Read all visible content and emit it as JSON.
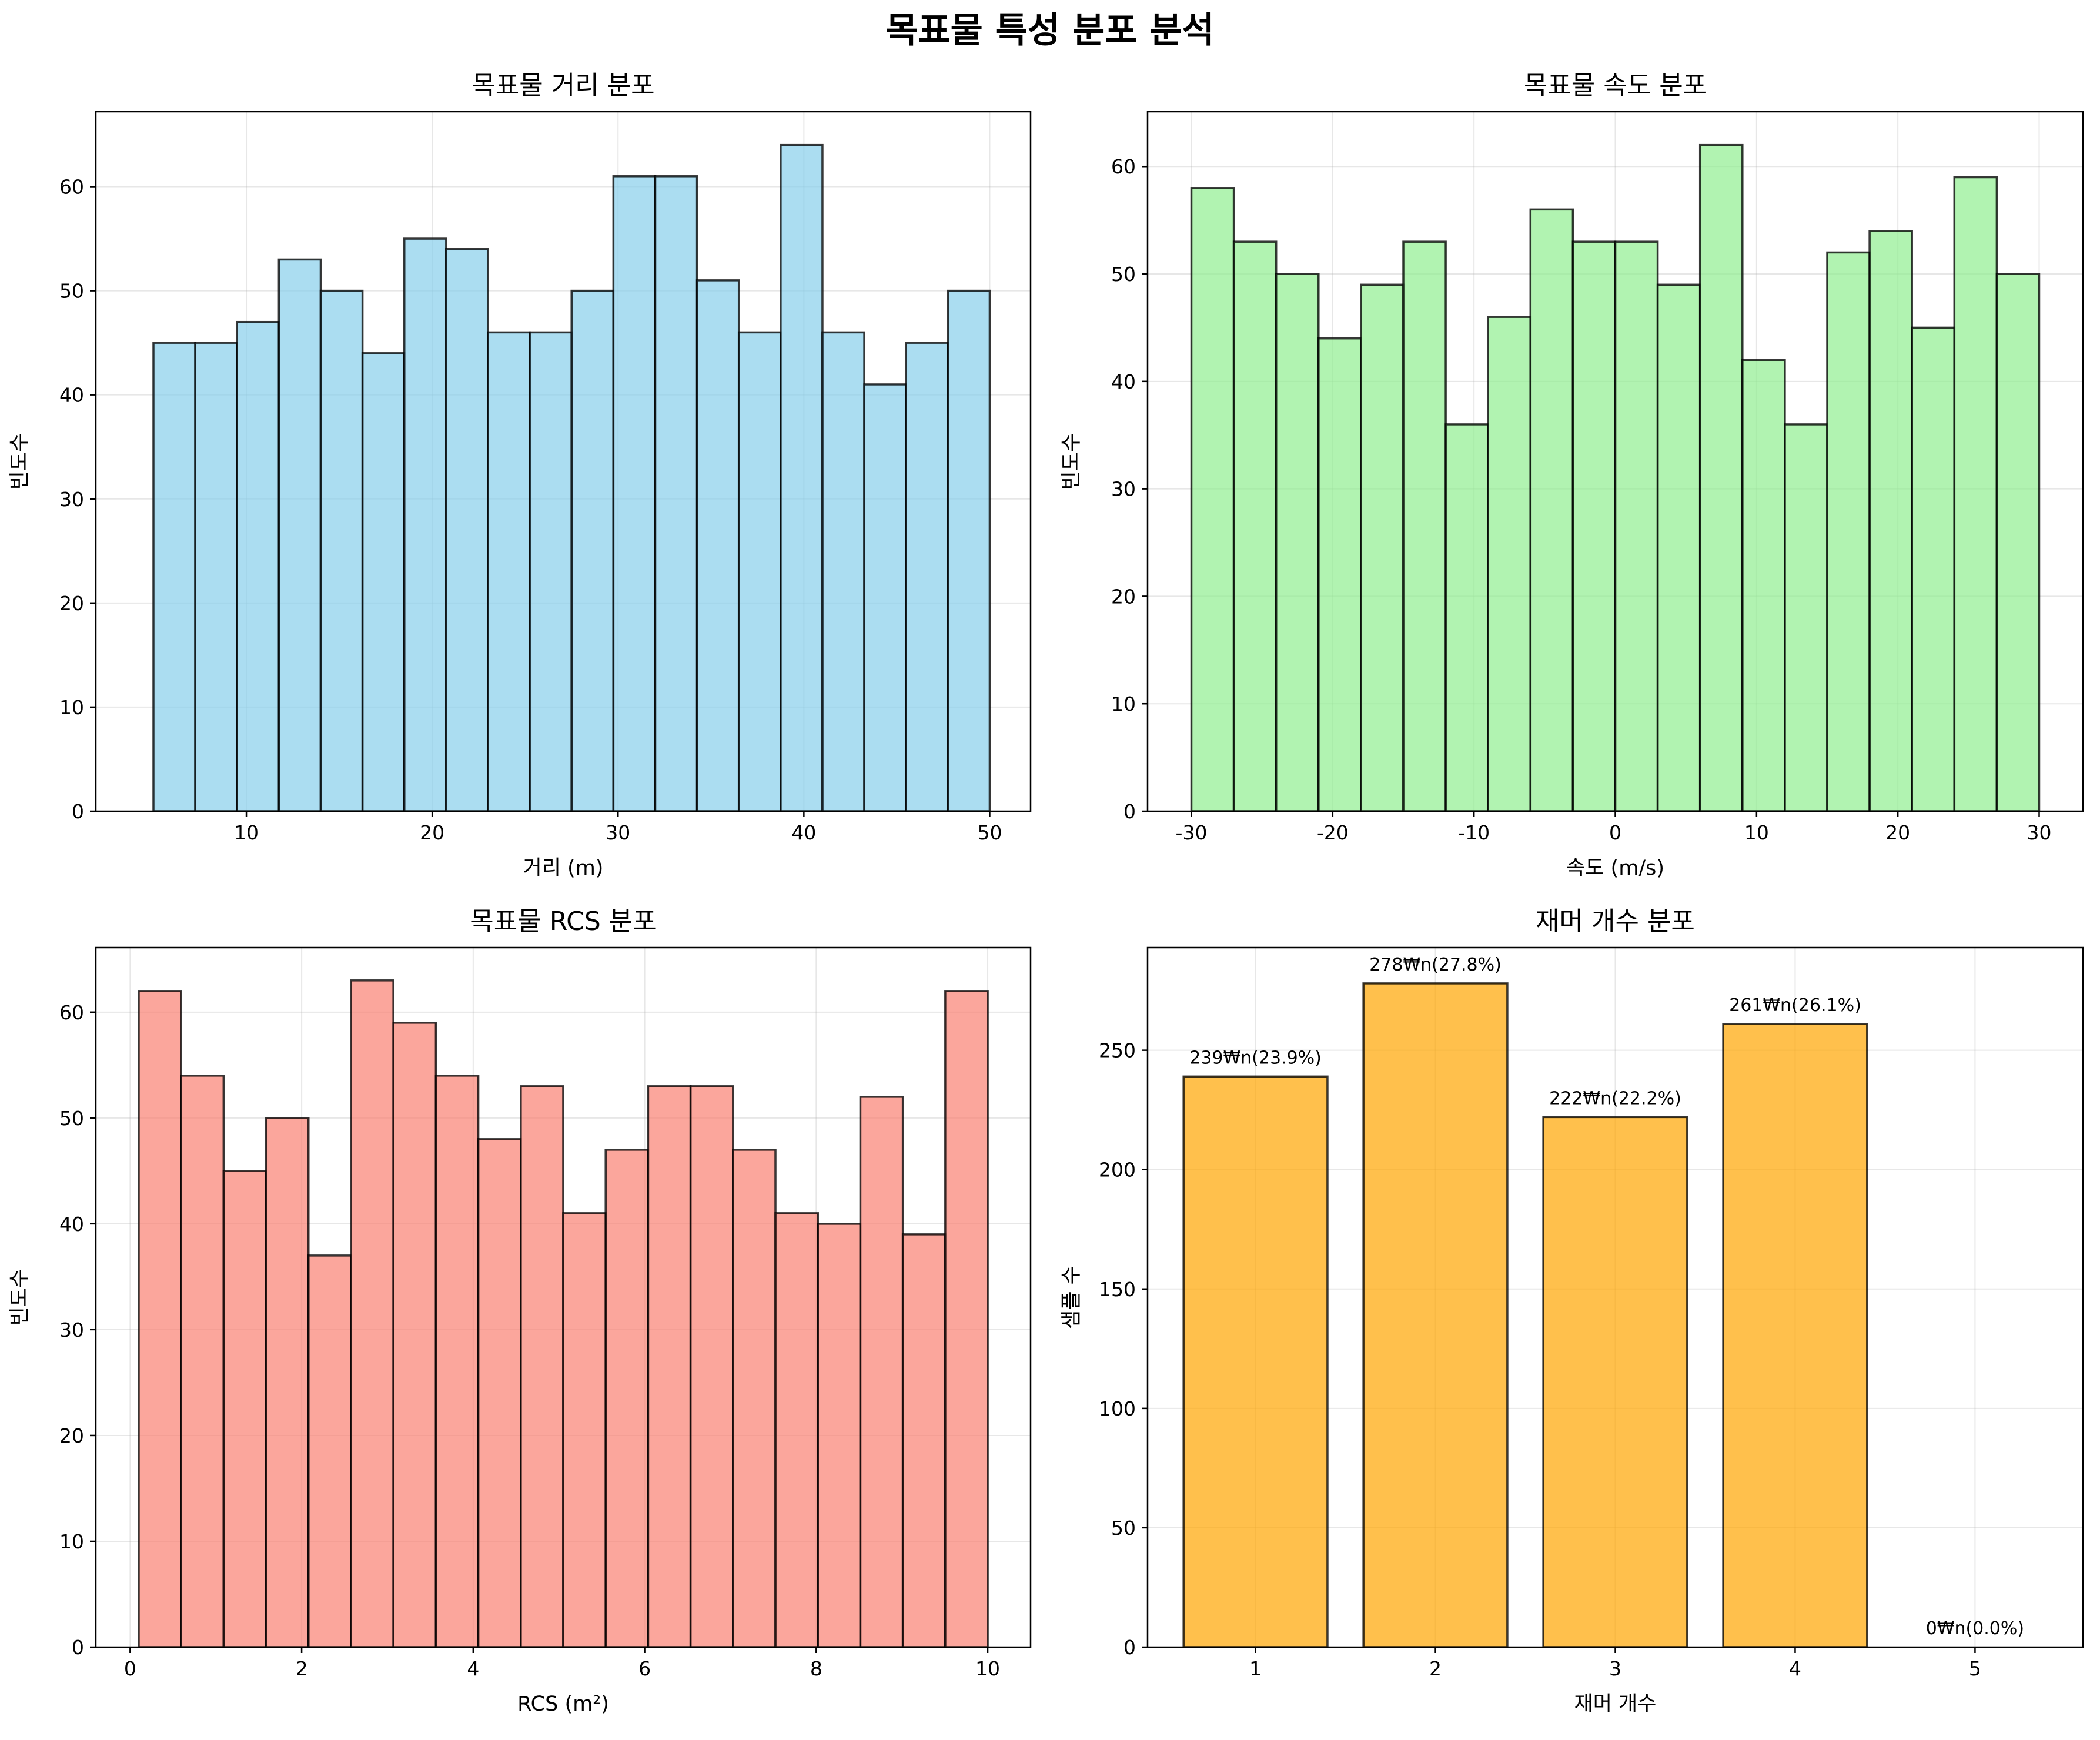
{
  "figure": {
    "suptitle": "목표물 특성 분포 분석"
  },
  "chart_data": [
    {
      "type": "bar",
      "subtype": "histogram",
      "title": "목표물 거리 분포",
      "xlabel": "거리 (m)",
      "ylabel": "빈도수",
      "color": "#87ceeb",
      "bin_range": [
        5,
        50
      ],
      "values": [
        45,
        45,
        47,
        53,
        50,
        44,
        55,
        54,
        46,
        46,
        50,
        61,
        61,
        51,
        46,
        64,
        46,
        41,
        45,
        50
      ],
      "xlim": [
        1.9,
        52.2
      ],
      "ylim": [
        0,
        67.2
      ],
      "xticks": [
        10,
        20,
        30,
        40,
        50
      ],
      "xtick_labels": [
        "10",
        "20",
        "30",
        "40",
        "50"
      ],
      "yticks": [
        0,
        10,
        20,
        30,
        40,
        50,
        60
      ],
      "ytick_labels": [
        "0",
        "10",
        "20",
        "30",
        "40",
        "50",
        "60"
      ],
      "grid": true
    },
    {
      "type": "bar",
      "subtype": "histogram",
      "title": "목표물 속도 분포",
      "xlabel": "속도 (m/s)",
      "ylabel": "빈도수",
      "color": "#90ee90",
      "bin_range": [
        -30,
        30
      ],
      "values": [
        58,
        53,
        50,
        44,
        49,
        53,
        36,
        46,
        56,
        53,
        53,
        49,
        62,
        42,
        36,
        52,
        54,
        45,
        59,
        50
      ],
      "xlim": [
        -33.1,
        33.1
      ],
      "ylim": [
        0,
        65.1
      ],
      "xticks": [
        -30,
        -20,
        -10,
        0,
        10,
        20,
        30
      ],
      "xtick_labels": [
        "-30",
        "-20",
        "-10",
        "0",
        "10",
        "20",
        "30"
      ],
      "yticks": [
        0,
        10,
        20,
        30,
        40,
        50,
        60
      ],
      "ytick_labels": [
        "0",
        "10",
        "20",
        "30",
        "40",
        "50",
        "60"
      ],
      "grid": true
    },
    {
      "type": "bar",
      "subtype": "histogram",
      "title": "목표물 RCS 분포",
      "xlabel": "RCS (m²)",
      "ylabel": "빈도수",
      "color": "#fa8072",
      "bin_range": [
        0.1,
        10
      ],
      "values": [
        62,
        54,
        45,
        50,
        37,
        63,
        59,
        54,
        48,
        53,
        41,
        47,
        53,
        53,
        47,
        41,
        40,
        52,
        39,
        62
      ],
      "xlim": [
        -0.4,
        10.5
      ],
      "ylim": [
        0,
        66.1
      ],
      "xticks": [
        0,
        2,
        4,
        6,
        8,
        10
      ],
      "xtick_labels": [
        "0",
        "2",
        "4",
        "6",
        "8",
        "10"
      ],
      "yticks": [
        0,
        10,
        20,
        30,
        40,
        50,
        60
      ],
      "ytick_labels": [
        "0",
        "10",
        "20",
        "30",
        "40",
        "50",
        "60"
      ],
      "grid": true
    },
    {
      "type": "bar",
      "title": "재머 개수 분포",
      "xlabel": "재머 개수",
      "ylabel": "샘플 수",
      "color": "#ffa500",
      "categories": [
        1,
        2,
        3,
        4,
        5
      ],
      "values": [
        239,
        278,
        222,
        261,
        0
      ],
      "bar_labels": [
        "239₩n(23.9%)",
        "278₩n(27.8%)",
        "222₩n(22.2%)",
        "261₩n(26.1%)",
        "0₩n(0.0%)"
      ],
      "xlim": [
        0.4,
        5.6
      ],
      "ylim": [
        0,
        293
      ],
      "xticks": [
        1,
        2,
        3,
        4,
        5
      ],
      "xtick_labels": [
        "1",
        "2",
        "3",
        "4",
        "5"
      ],
      "yticks": [
        0,
        50,
        100,
        150,
        200,
        250
      ],
      "ytick_labels": [
        "0",
        "50",
        "100",
        "150",
        "200",
        "250"
      ],
      "grid": true
    }
  ]
}
